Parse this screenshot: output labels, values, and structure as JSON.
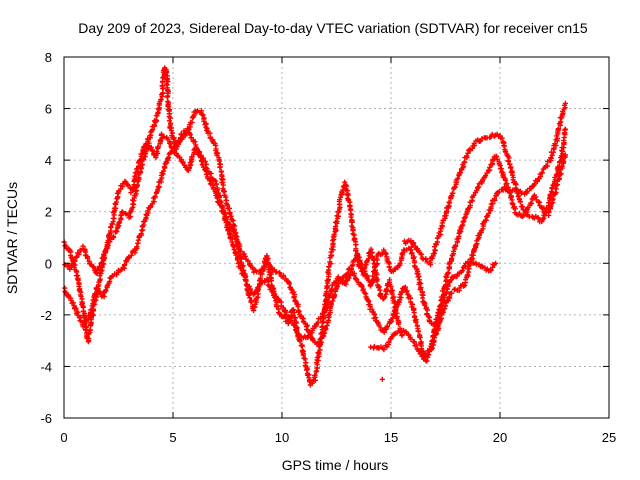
{
  "chart_data": {
    "type": "scatter",
    "title": "Day 209 of 2023, Sidereal Day-to-day VTEC variation (SDTVAR) for receiver cn15",
    "xlabel": "GPS time / hours",
    "ylabel": "SDTVAR / TECUs",
    "xlim": [
      0,
      25
    ],
    "ylim": [
      -6,
      8
    ],
    "xticks": [
      0,
      5,
      10,
      15,
      20,
      25
    ],
    "yticks": [
      -6,
      -4,
      -2,
      0,
      2,
      4,
      6,
      8
    ],
    "grid": true,
    "marker": "+",
    "color": "#ff0000",
    "tracks": [
      [
        [
          0.0,
          0.8
        ],
        [
          0.3,
          0.4
        ],
        [
          0.6,
          -0.5
        ],
        [
          0.9,
          -1.8
        ],
        [
          1.1,
          -3.0
        ],
        [
          1.3,
          -2.0
        ],
        [
          1.6,
          -0.8
        ],
        [
          1.9,
          0.5
        ],
        [
          2.2,
          1.5
        ],
        [
          2.5,
          2.8
        ],
        [
          2.8,
          3.2
        ],
        [
          3.1,
          2.8
        ],
        [
          3.4,
          3.8
        ],
        [
          3.7,
          4.5
        ],
        [
          4.0,
          5.0
        ],
        [
          4.3,
          5.8
        ],
        [
          4.5,
          6.6
        ],
        [
          4.6,
          7.6
        ],
        [
          4.7,
          7.4
        ],
        [
          4.8,
          6.0
        ],
        [
          4.9,
          5.2
        ],
        [
          5.1,
          4.6
        ],
        [
          5.4,
          4.8
        ],
        [
          5.7,
          5.2
        ],
        [
          6.0,
          5.9
        ],
        [
          6.3,
          5.9
        ],
        [
          6.6,
          5.1
        ],
        [
          6.9,
          4.6
        ],
        [
          7.1,
          4.0
        ],
        [
          7.3,
          3.0
        ],
        [
          7.5,
          2.2
        ],
        [
          7.7,
          1.8
        ],
        [
          7.9,
          1.0
        ],
        [
          8.1,
          0.2
        ],
        [
          8.3,
          -0.5
        ],
        [
          8.5,
          -1.3
        ],
        [
          8.7,
          -1.8
        ],
        [
          8.9,
          -1.2
        ],
        [
          9.1,
          -0.2
        ],
        [
          9.3,
          0.3
        ],
        [
          9.5,
          -0.6
        ],
        [
          9.7,
          -1.4
        ],
        [
          9.9,
          -2.0
        ],
        [
          10.1,
          -2.1
        ],
        [
          10.3,
          -2.3
        ],
        [
          10.5,
          -1.8
        ],
        [
          10.7,
          -2.6
        ],
        [
          10.9,
          -3.2
        ],
        [
          11.1,
          -4.0
        ],
        [
          11.3,
          -4.7
        ],
        [
          11.5,
          -4.5
        ],
        [
          11.7,
          -3.4
        ],
        [
          11.9,
          -2.2
        ],
        [
          12.1,
          -0.6
        ],
        [
          12.3,
          0.5
        ],
        [
          12.5,
          1.6
        ],
        [
          12.7,
          2.6
        ],
        [
          12.9,
          3.1
        ],
        [
          13.1,
          2.2
        ],
        [
          13.3,
          1.0
        ],
        [
          13.5,
          0.0
        ],
        [
          13.7,
          -0.4
        ],
        [
          13.9,
          0.1
        ],
        [
          14.1,
          0.5
        ],
        [
          14.3,
          -0.4
        ],
        [
          14.5,
          -1.2
        ],
        [
          14.7,
          -1.4
        ],
        [
          14.9,
          -0.7
        ],
        [
          15.1,
          -1.3
        ],
        [
          15.3,
          -2.2
        ],
        [
          15.5,
          -2.8
        ]
      ],
      [
        [
          0.0,
          0.0
        ],
        [
          0.3,
          -0.2
        ],
        [
          0.6,
          0.3
        ],
        [
          0.9,
          0.6
        ],
        [
          1.2,
          0.0
        ],
        [
          1.5,
          -0.4
        ],
        [
          1.8,
          0.2
        ],
        [
          2.1,
          0.9
        ],
        [
          2.4,
          1.2
        ],
        [
          2.7,
          2.0
        ],
        [
          3.0,
          1.8
        ],
        [
          3.3,
          2.8
        ],
        [
          3.6,
          4.0
        ],
        [
          3.9,
          4.6
        ],
        [
          4.2,
          4.1
        ],
        [
          4.5,
          5.0
        ],
        [
          4.8,
          4.8
        ],
        [
          5.1,
          4.3
        ],
        [
          5.4,
          4.0
        ],
        [
          5.7,
          3.6
        ],
        [
          6.0,
          4.4
        ],
        [
          6.3,
          4.2
        ],
        [
          6.6,
          3.6
        ],
        [
          6.9,
          3.2
        ],
        [
          7.2,
          2.4
        ],
        [
          7.5,
          1.4
        ],
        [
          7.8,
          0.6
        ],
        [
          8.1,
          -0.2
        ],
        [
          8.4,
          -0.8
        ],
        [
          8.7,
          -1.2
        ],
        [
          9.0,
          -0.8
        ],
        [
          9.3,
          -0.6
        ],
        [
          9.6,
          -1.2
        ],
        [
          9.9,
          -1.5
        ],
        [
          10.2,
          -2.0
        ],
        [
          10.5,
          -2.4
        ],
        [
          10.8,
          -2.8
        ],
        [
          11.1,
          -2.9
        ],
        [
          11.4,
          -2.6
        ],
        [
          11.7,
          -2.2
        ],
        [
          12.0,
          -1.8
        ],
        [
          12.3,
          -0.9
        ],
        [
          12.6,
          -0.5
        ],
        [
          12.9,
          -0.8
        ],
        [
          13.2,
          -0.3
        ],
        [
          13.5,
          -0.7
        ],
        [
          13.8,
          -1.2
        ],
        [
          14.1,
          -1.8
        ],
        [
          14.4,
          -2.4
        ],
        [
          14.7,
          -2.7
        ],
        [
          15.0,
          -2.2
        ],
        [
          15.3,
          -1.6
        ],
        [
          15.6,
          -0.9
        ],
        [
          15.9,
          -1.4
        ],
        [
          16.2,
          -2.4
        ],
        [
          16.5,
          -3.6
        ],
        [
          16.8,
          -3.3
        ],
        [
          17.1,
          -2.2
        ],
        [
          17.4,
          -1.1
        ],
        [
          17.7,
          0.0
        ],
        [
          18.0,
          0.8
        ],
        [
          18.3,
          1.6
        ],
        [
          18.6,
          2.2
        ],
        [
          18.9,
          2.8
        ],
        [
          19.2,
          3.2
        ],
        [
          19.5,
          3.6
        ],
        [
          19.8,
          4.2
        ],
        [
          20.1,
          3.6
        ],
        [
          20.4,
          2.8
        ],
        [
          20.7,
          2.0
        ],
        [
          21.0,
          1.8
        ],
        [
          21.3,
          2.2
        ],
        [
          21.6,
          2.6
        ],
        [
          21.9,
          2.2
        ],
        [
          22.2,
          1.9
        ],
        [
          22.5,
          2.6
        ],
        [
          22.8,
          3.6
        ],
        [
          23.0,
          4.2
        ]
      ],
      [
        [
          0.0,
          -1.0
        ],
        [
          0.3,
          -1.4
        ],
        [
          0.6,
          -1.9
        ],
        [
          0.9,
          -2.4
        ],
        [
          1.2,
          -2.0
        ],
        [
          1.5,
          -1.0
        ],
        [
          1.8,
          -1.3
        ],
        [
          2.1,
          -0.6
        ],
        [
          2.4,
          -0.4
        ],
        [
          2.7,
          -0.2
        ],
        [
          3.0,
          0.3
        ],
        [
          3.3,
          0.5
        ],
        [
          3.6,
          1.4
        ],
        [
          3.9,
          2.1
        ],
        [
          4.2,
          2.6
        ],
        [
          4.5,
          3.4
        ],
        [
          4.8,
          4.2
        ],
        [
          5.1,
          4.4
        ],
        [
          5.4,
          5.0
        ],
        [
          5.7,
          5.2
        ],
        [
          6.0,
          4.6
        ],
        [
          6.3,
          4.0
        ],
        [
          6.6,
          3.4
        ],
        [
          6.9,
          2.8
        ],
        [
          7.2,
          2.2
        ],
        [
          7.5,
          1.6
        ],
        [
          7.8,
          1.2
        ],
        [
          8.1,
          0.5
        ],
        [
          8.4,
          0.1
        ],
        [
          8.7,
          -0.3
        ],
        [
          9.0,
          -0.3
        ],
        [
          9.3,
          0.0
        ],
        [
          9.6,
          -0.2
        ],
        [
          9.9,
          -0.4
        ],
        [
          10.2,
          -0.6
        ],
        [
          10.5,
          -1.1
        ],
        [
          10.8,
          -1.9
        ],
        [
          11.1,
          -2.4
        ],
        [
          11.4,
          -3.0
        ],
        [
          11.7,
          -3.2
        ],
        [
          12.0,
          -2.6
        ],
        [
          12.3,
          -1.5
        ],
        [
          12.6,
          -0.8
        ],
        [
          12.9,
          -0.5
        ],
        [
          13.2,
          -0.1
        ],
        [
          13.5,
          0.3
        ],
        [
          13.8,
          -0.4
        ],
        [
          14.1,
          -0.9
        ],
        [
          14.4,
          0.3
        ],
        [
          14.7,
          0.5
        ],
        [
          15.0,
          -0.3
        ],
        [
          15.3,
          -0.2
        ],
        [
          15.6,
          0.5
        ],
        [
          15.9,
          0.6
        ],
        [
          16.2,
          -0.3
        ],
        [
          16.5,
          -1.5
        ],
        [
          16.8,
          -2.3
        ],
        [
          17.1,
          -2.4
        ],
        [
          17.4,
          -1.5
        ],
        [
          17.7,
          -0.6
        ],
        [
          18.0,
          -0.5
        ],
        [
          18.3,
          -0.2
        ],
        [
          18.6,
          0.1
        ],
        [
          18.9,
          0.0
        ],
        [
          19.2,
          -0.2
        ],
        [
          19.5,
          -0.3
        ],
        [
          19.8,
          0.0
        ]
      ],
      [
        [
          14.1,
          -3.2
        ],
        [
          14.4,
          -3.3
        ],
        [
          14.7,
          -3.3
        ],
        [
          14.9,
          -3.1
        ],
        [
          15.1,
          -2.8
        ],
        [
          15.4,
          -2.6
        ],
        [
          15.7,
          -2.7
        ],
        [
          16.0,
          -3.0
        ],
        [
          16.3,
          -3.4
        ],
        [
          16.6,
          -3.8
        ],
        [
          16.9,
          -3.2
        ],
        [
          17.2,
          -2.4
        ],
        [
          17.5,
          -1.6
        ],
        [
          17.8,
          -1.1
        ],
        [
          18.1,
          -1.0
        ],
        [
          18.4,
          -0.8
        ],
        [
          18.7,
          0.2
        ],
        [
          19.0,
          1.0
        ],
        [
          19.3,
          1.6
        ],
        [
          19.6,
          2.2
        ],
        [
          19.9,
          2.8
        ],
        [
          20.2,
          2.9
        ],
        [
          20.5,
          2.8
        ],
        [
          20.8,
          2.8
        ],
        [
          21.1,
          2.7
        ],
        [
          21.4,
          2.9
        ],
        [
          21.7,
          3.2
        ],
        [
          22.0,
          3.6
        ],
        [
          22.3,
          4.0
        ],
        [
          22.6,
          4.8
        ],
        [
          22.8,
          5.6
        ],
        [
          23.0,
          6.2
        ]
      ],
      [
        [
          15.6,
          0.8
        ],
        [
          15.9,
          0.9
        ],
        [
          16.2,
          0.6
        ],
        [
          16.5,
          0.2
        ],
        [
          16.8,
          0.0
        ],
        [
          17.1,
          0.8
        ],
        [
          17.4,
          1.6
        ],
        [
          17.7,
          2.4
        ],
        [
          18.0,
          3.2
        ],
        [
          18.3,
          3.8
        ],
        [
          18.6,
          4.4
        ],
        [
          18.9,
          4.7
        ],
        [
          19.2,
          4.8
        ],
        [
          19.5,
          4.9
        ],
        [
          19.8,
          5.0
        ],
        [
          20.1,
          4.8
        ],
        [
          20.4,
          4.0
        ],
        [
          20.7,
          3.0
        ],
        [
          21.0,
          2.2
        ],
        [
          21.3,
          1.9
        ],
        [
          21.6,
          1.8
        ],
        [
          21.9,
          1.6
        ],
        [
          22.2,
          2.2
        ],
        [
          22.5,
          3.2
        ],
        [
          22.8,
          4.0
        ],
        [
          23.0,
          5.2
        ]
      ]
    ],
    "outliers": [
      [
        14.6,
        -4.5
      ]
    ]
  }
}
